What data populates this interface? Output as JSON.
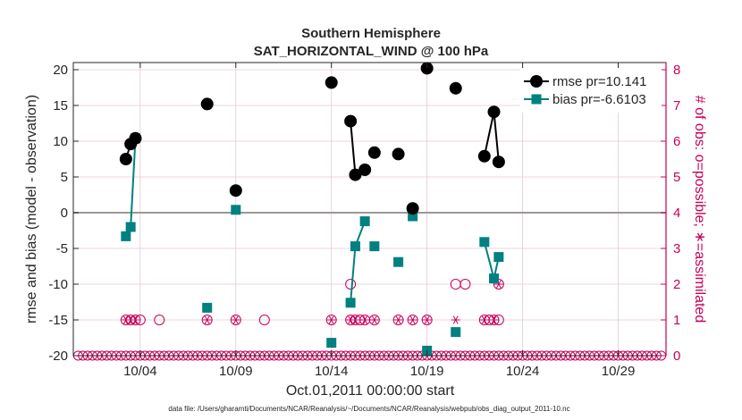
{
  "chart_data": {
    "type": "line",
    "title": "Southern Hemisphere",
    "subtitle": "SAT_HORIZONTAL_WIND @ 100 hPa",
    "xlabel": "Oct.01,2011 00:00:00 start",
    "ylabel": "rmse and bias (model - observation)",
    "y2label": "# of obs: o=possible; ∗=assimilated",
    "footnote": "data file: /Users/gharamti/Documents/NCAR/Reanalysis/~/Documents/NCAR/Reanalysis/webpub/obs_diag_output_2011-10.nc",
    "xlim": [
      0.5,
      31.5
    ],
    "ylim": [
      -20,
      21
    ],
    "y2lim": [
      0,
      8.2
    ],
    "x_ticks": [
      {
        "x": 4,
        "label": "10/04"
      },
      {
        "x": 9,
        "label": "10/09"
      },
      {
        "x": 14,
        "label": "10/14"
      },
      {
        "x": 19,
        "label": "10/19"
      },
      {
        "x": 24,
        "label": "10/24"
      },
      {
        "x": 29,
        "label": "10/29"
      }
    ],
    "y_ticks": [
      {
        "v": 20,
        "label": "20"
      },
      {
        "v": 15,
        "label": "15"
      },
      {
        "v": 10,
        "label": "10"
      },
      {
        "v": 5,
        "label": "5"
      },
      {
        "v": 0,
        "label": "0"
      },
      {
        "v": -5,
        "label": "-5"
      },
      {
        "v": -10,
        "label": "-10"
      },
      {
        "v": -15,
        "label": "-15"
      },
      {
        "v": -20,
        "label": "-20"
      }
    ],
    "y2_ticks": [
      {
        "v": 0,
        "label": "0"
      },
      {
        "v": 1,
        "label": "1"
      },
      {
        "v": 2,
        "label": "2"
      },
      {
        "v": 3,
        "label": "3"
      },
      {
        "v": 4,
        "label": "4"
      },
      {
        "v": 5,
        "label": "5"
      },
      {
        "v": 6,
        "label": "6"
      },
      {
        "v": 7,
        "label": "7"
      },
      {
        "v": 8,
        "label": "8"
      }
    ],
    "colors": {
      "rmse": "#000000",
      "bias": "#008080",
      "obs": "#c8005a",
      "zero_line": "#999999",
      "grid": "#e6c6d6"
    },
    "series": [
      {
        "name": "rmse",
        "legend": "rmse pr=10.141",
        "segments": [
          [
            [
              3.25,
              7.5
            ],
            [
              3.5,
              9.6
            ],
            [
              3.75,
              10.4
            ]
          ],
          [
            [
              7.5,
              15.2
            ]
          ],
          [
            [
              9.0,
              3.1
            ]
          ],
          [
            [
              14.0,
              18.2
            ]
          ],
          [
            [
              15.0,
              12.8
            ],
            [
              15.25,
              5.3
            ],
            [
              15.75,
              6.0
            ]
          ],
          [
            [
              16.25,
              8.4
            ]
          ],
          [
            [
              17.5,
              8.2
            ]
          ],
          [
            [
              18.25,
              0.6
            ]
          ],
          [
            [
              19.0,
              20.2
            ]
          ],
          [
            [
              20.5,
              17.4
            ]
          ],
          [
            [
              22.0,
              7.9
            ],
            [
              22.5,
              14.1
            ],
            [
              22.75,
              7.1
            ]
          ]
        ]
      },
      {
        "name": "bias",
        "legend": "bias pr=-6.6103",
        "segments": [
          [
            [
              3.25,
              -3.3
            ],
            [
              3.5,
              -2.0
            ],
            [
              3.75,
              10.4
            ]
          ],
          [
            [
              7.5,
              -13.3
            ]
          ],
          [
            [
              9.0,
              0.4
            ]
          ],
          [
            [
              14.0,
              -18.2
            ]
          ],
          [
            [
              15.0,
              -12.6
            ],
            [
              15.25,
              -4.7
            ],
            [
              15.75,
              -1.2
            ]
          ],
          [
            [
              16.25,
              -4.7
            ]
          ],
          [
            [
              17.5,
              -6.9
            ]
          ],
          [
            [
              18.25,
              -0.5
            ]
          ],
          [
            [
              19.0,
              -19.3
            ]
          ],
          [
            [
              20.5,
              -16.7
            ]
          ],
          [
            [
              22.0,
              -4.1
            ],
            [
              22.5,
              -9.2
            ],
            [
              22.75,
              -6.2
            ]
          ]
        ]
      }
    ],
    "obs_possible": [
      [
        3.25,
        1
      ],
      [
        3.5,
        1
      ],
      [
        3.75,
        1
      ],
      [
        4.0,
        1
      ],
      [
        5.0,
        1
      ],
      [
        7.5,
        1
      ],
      [
        9.0,
        1
      ],
      [
        10.5,
        1
      ],
      [
        14.0,
        1
      ],
      [
        15.0,
        2
      ],
      [
        15.0,
        1
      ],
      [
        15.25,
        1
      ],
      [
        15.5,
        1
      ],
      [
        15.75,
        1
      ],
      [
        16.25,
        1
      ],
      [
        17.5,
        1
      ],
      [
        18.25,
        1
      ],
      [
        19.0,
        1
      ],
      [
        20.5,
        2
      ],
      [
        21.0,
        2
      ],
      [
        22.0,
        1
      ],
      [
        22.25,
        1
      ],
      [
        22.5,
        1
      ],
      [
        22.75,
        2
      ],
      [
        22.75,
        1
      ]
    ],
    "obs_assimilated": [
      [
        3.25,
        1
      ],
      [
        3.5,
        1
      ],
      [
        3.75,
        1
      ],
      [
        7.5,
        1
      ],
      [
        9.0,
        1
      ],
      [
        14.0,
        1
      ],
      [
        15.0,
        1
      ],
      [
        15.25,
        1
      ],
      [
        15.75,
        1
      ],
      [
        16.25,
        1
      ],
      [
        17.5,
        1
      ],
      [
        18.25,
        1
      ],
      [
        19.0,
        1
      ],
      [
        20.5,
        1
      ],
      [
        22.0,
        1
      ],
      [
        22.5,
        1
      ],
      [
        22.75,
        2
      ]
    ]
  }
}
